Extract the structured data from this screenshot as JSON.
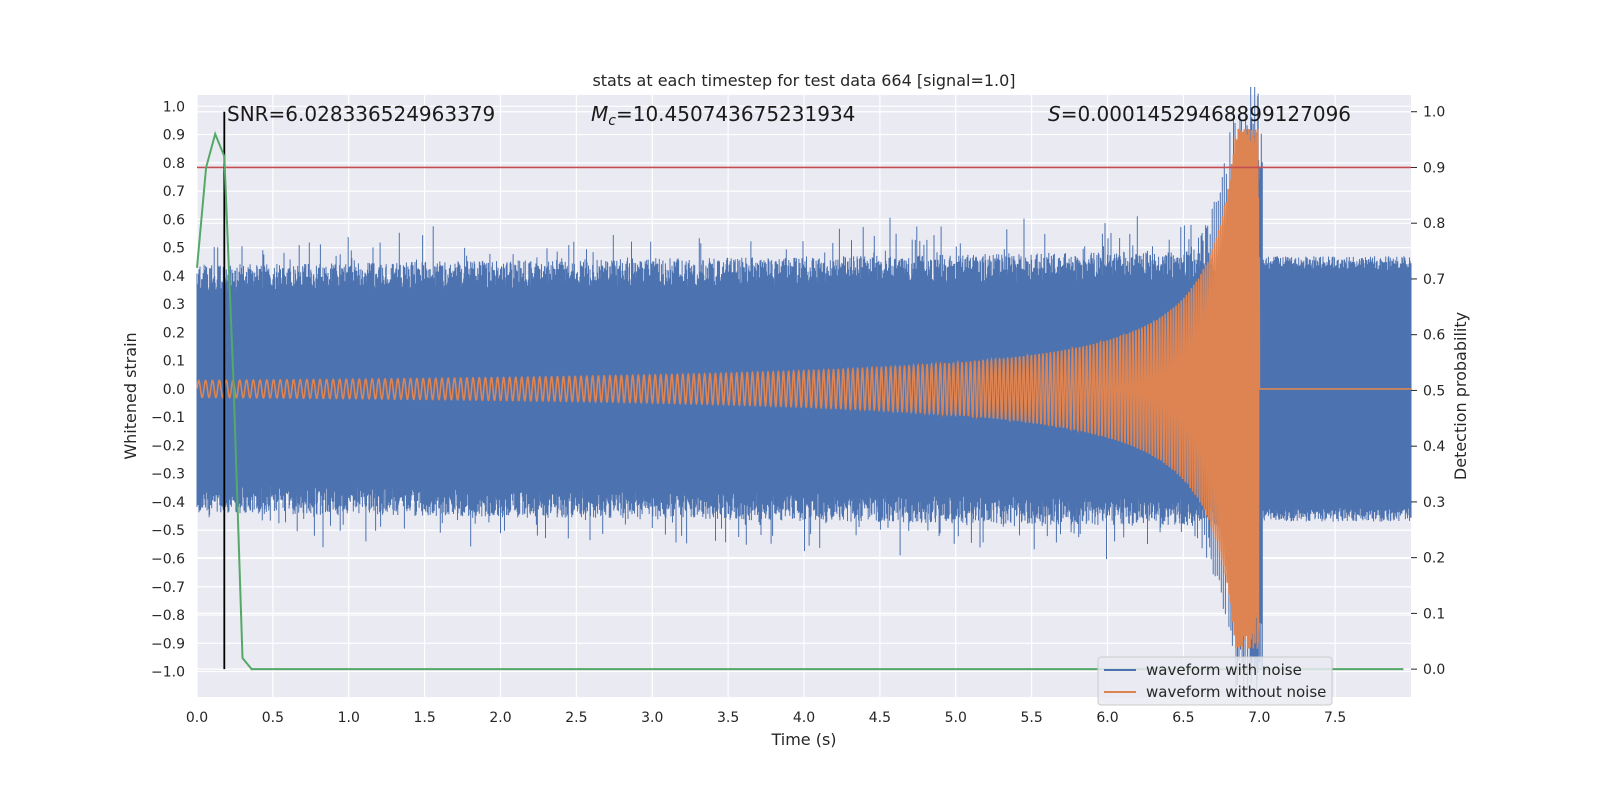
{
  "chart_data": {
    "type": "line",
    "title": "stats at each timestep for test data 664 [signal=1.0]",
    "xlabel": "Time (s)",
    "ylabel_left": "Whitened strain",
    "ylabel_right": "Detection probability",
    "xlim": [
      0.0,
      8.0
    ],
    "ylim_left": [
      -1.09,
      1.04
    ],
    "ylim_right": [
      -0.05,
      1.03
    ],
    "x_ticks": [
      "0.0",
      "0.5",
      "1.0",
      "1.5",
      "2.0",
      "2.5",
      "3.0",
      "3.5",
      "4.0",
      "4.5",
      "5.0",
      "5.5",
      "6.0",
      "6.5",
      "7.0",
      "7.5"
    ],
    "y_ticks_left": [
      "1.0",
      "0.9",
      "0.8",
      "0.7",
      "0.6",
      "0.5",
      "0.4",
      "0.3",
      "0.2",
      "0.1",
      "0.0",
      "−0.1",
      "−0.2",
      "−0.3",
      "−0.4",
      "−0.5",
      "−0.6",
      "−0.7",
      "−0.8",
      "−0.9",
      "−1.0"
    ],
    "y_ticks_right": [
      "1.0",
      "0.9",
      "0.8",
      "0.7",
      "0.6",
      "0.5",
      "0.4",
      "0.3",
      "0.2",
      "0.1",
      "0.0"
    ],
    "annotations": {
      "snr": "SNR=6.028336524963379",
      "mc_symbol": "M",
      "mc_sub": "c",
      "mc_value": "=10.450743675231934",
      "s_symbol": "S",
      "s_value": "=0.00014529468899127096"
    },
    "series": [
      {
        "name": "waveform with noise",
        "axis": "left",
        "color": "#4c72b0",
        "noise_envelope": 0.45,
        "merger_time": 7.0,
        "peak_amplitude": 0.95
      },
      {
        "name": "waveform without noise",
        "axis": "left",
        "color": "#dd8452",
        "start_amplitude": 0.03,
        "merger_time": 7.0,
        "peak_amplitude": 0.92,
        "post_merger_value": 0.0
      },
      {
        "name": "Detection probability",
        "axis": "right",
        "color": "#55a868",
        "x": [
          0.0,
          0.06,
          0.12,
          0.18,
          0.24,
          0.3,
          0.36,
          7.95
        ],
        "y": [
          0.72,
          0.9,
          0.96,
          0.92,
          0.52,
          0.02,
          0.0,
          0.0
        ]
      }
    ],
    "threshold": {
      "axis": "right",
      "value": 0.9,
      "color": "#c44e52"
    },
    "vline": {
      "x": 0.18,
      "color": "#000000"
    },
    "legend": {
      "position": "lower-right",
      "entries": [
        "waveform with noise",
        "waveform without noise"
      ]
    }
  }
}
